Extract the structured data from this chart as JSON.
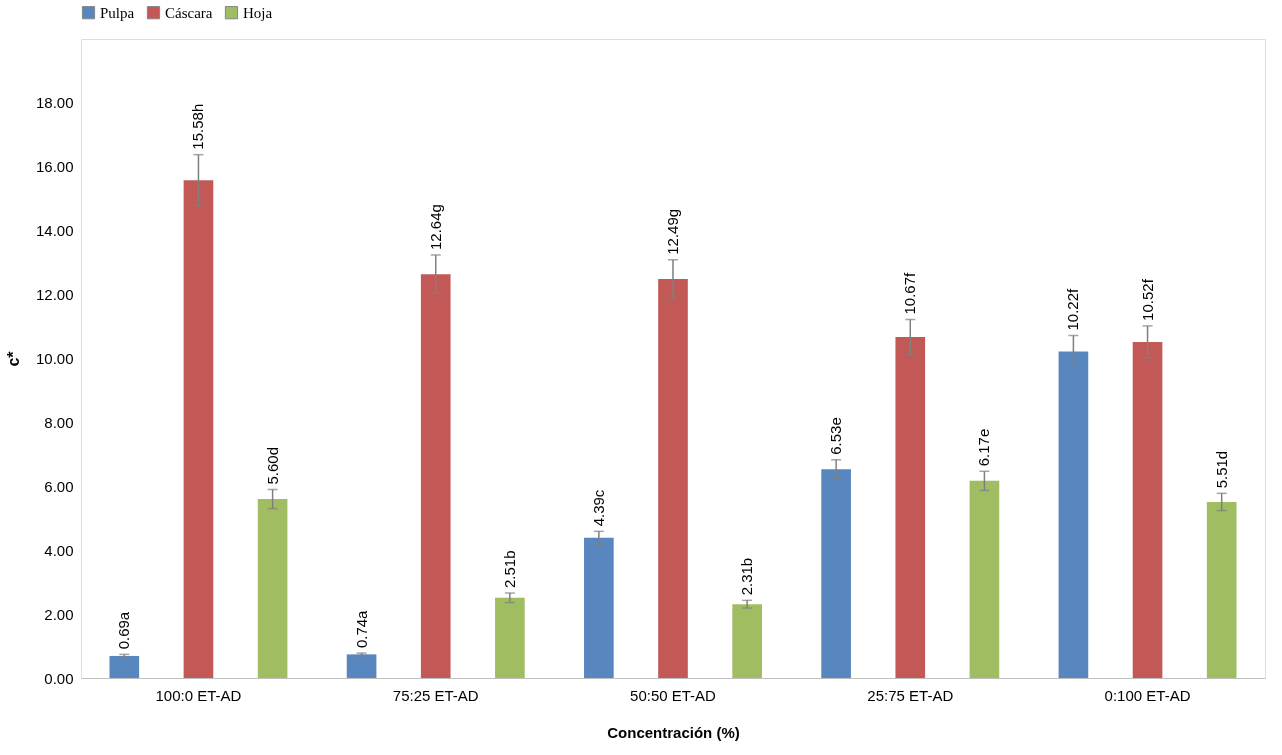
{
  "chart_data": {
    "type": "bar",
    "xlabel": "Concentración (%)",
    "ylabel": "c*",
    "categories": [
      "100:0 ET-AD",
      "75:25 ET-AD",
      "50:50 ET-AD",
      "25:75 ET-AD",
      "0:100 ET-AD"
    ],
    "series": [
      {
        "name": "Pulpa",
        "color": "#4f81bd",
        "values": [
          0.69,
          0.74,
          4.39,
          6.53,
          10.22
        ],
        "errors": [
          0.05,
          0.04,
          0.2,
          0.3,
          0.5
        ],
        "value_labels": [
          "0.69a",
          "0.74a",
          "4.39c",
          "6.53e",
          "10.22f"
        ]
      },
      {
        "name": "Cáscara",
        "color": "#c0504d",
        "values": [
          15.58,
          12.64,
          12.49,
          10.67,
          10.52
        ],
        "errors": [
          0.8,
          0.6,
          0.6,
          0.55,
          0.5
        ],
        "value_labels": [
          "15.58h",
          "12.64g",
          "12.49g",
          "10.67f",
          "10.52f"
        ]
      },
      {
        "name": "Hoja",
        "color": "#9bbb59",
        "values": [
          5.6,
          2.51,
          2.31,
          6.17,
          5.51
        ],
        "errors": [
          0.3,
          0.15,
          0.12,
          0.3,
          0.27
        ],
        "value_labels": [
          "5.60d",
          "2.51b",
          "2.31b",
          "6.17e",
          "5.51d"
        ]
      }
    ],
    "ylim": [
      0,
      20
    ],
    "yticks": [
      {
        "value": 0,
        "label": "0.00"
      },
      {
        "value": 2,
        "label": "2.00"
      },
      {
        "value": 4,
        "label": "4.00"
      },
      {
        "value": 6,
        "label": "6.00"
      },
      {
        "value": 8,
        "label": "8.00"
      },
      {
        "value": 10,
        "label": "10.00"
      },
      {
        "value": 12,
        "label": "12.00"
      },
      {
        "value": 14,
        "label": "14.00"
      },
      {
        "value": 16,
        "label": "16.00"
      },
      {
        "value": 18,
        "label": "18.00"
      },
      {
        "value": 20,
        "label": null
      }
    ],
    "grid": false,
    "legend": "top"
  }
}
